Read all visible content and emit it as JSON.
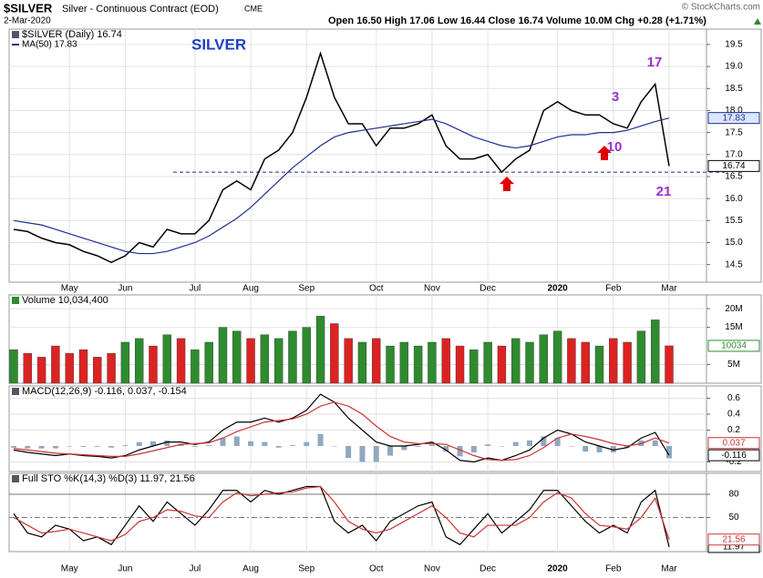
{
  "header": {
    "symbol": "$SILVER",
    "name": "Silver - Continuous Contract (EOD)",
    "exchange": "CME",
    "date": "2-Mar-2020",
    "quote": "Open 16.50  High 17.06  Low 16.44  Close 16.74  Volume 10.0M  Chg +0.28 (+1.71%)",
    "copyright": "© StockCharts.com"
  },
  "chart_data": [
    {
      "type": "line",
      "title": "$SILVER (Daily) 16.74",
      "subtitle": "MA(50) 17.83",
      "categories": [
        null,
        null,
        null,
        null,
        "May",
        null,
        null,
        null,
        "Jun",
        null,
        null,
        null,
        null,
        "Jul",
        null,
        null,
        null,
        "Aug",
        null,
        null,
        null,
        "Sep",
        null,
        null,
        null,
        null,
        "Oct",
        null,
        null,
        null,
        "Nov",
        null,
        null,
        null,
        "Dec",
        null,
        null,
        null,
        null,
        "2020",
        null,
        null,
        null,
        "Feb",
        null,
        null,
        null,
        "Mar"
      ],
      "series": [
        {
          "color": "#000000",
          "show_last": true,
          "values": [
            15.3,
            15.25,
            15.1,
            15.0,
            14.95,
            14.8,
            14.7,
            14.55,
            14.7,
            15.0,
            14.9,
            15.3,
            15.2,
            15.2,
            15.5,
            16.2,
            16.4,
            16.2,
            16.9,
            17.1,
            17.5,
            18.3,
            19.3,
            18.3,
            17.7,
            17.7,
            17.2,
            17.6,
            17.6,
            17.7,
            17.9,
            17.2,
            16.9,
            16.9,
            17.0,
            16.6,
            16.9,
            17.1,
            18.0,
            18.2,
            18.0,
            17.9,
            17.9,
            17.7,
            17.6,
            18.2,
            18.6,
            16.74
          ]
        },
        {
          "color": "#1f2f8f",
          "show_last": true,
          "values": [
            15.5,
            15.45,
            15.4,
            15.3,
            15.2,
            15.1,
            15.0,
            14.9,
            14.8,
            14.75,
            14.75,
            14.8,
            14.9,
            15.0,
            15.15,
            15.35,
            15.55,
            15.8,
            16.1,
            16.4,
            16.7,
            16.95,
            17.2,
            17.4,
            17.5,
            17.55,
            17.6,
            17.65,
            17.7,
            17.75,
            17.8,
            17.7,
            17.55,
            17.4,
            17.3,
            17.2,
            17.15,
            17.2,
            17.3,
            17.4,
            17.45,
            17.45,
            17.5,
            17.5,
            17.55,
            17.65,
            17.75,
            17.83
          ]
        }
      ],
      "ylim": [
        14.1,
        19.85
      ],
      "yticks": [
        14.5,
        {
          "value": 15,
          "label": "15.0"
        },
        15.5,
        {
          "value": 16,
          "label": "16.0"
        },
        16.5,
        {
          "value": 17,
          "label": "17.0"
        },
        17.5,
        {
          "value": 18,
          "label": "18.0"
        },
        18.5,
        {
          "value": 19,
          "label": "19.0"
        },
        19.5
      ],
      "reference_line": 16.6,
      "annotations": [
        "SILVER",
        "17",
        "3",
        "10",
        "21"
      ]
    },
    {
      "type": "bar",
      "title": "Volume 10,034,400",
      "up_color": "#2e8b2e",
      "down_color": "#dd2222",
      "series": [
        {
          "color": "#2e8b2e",
          "last_label": "10034",
          "values": [
            9,
            8,
            7,
            10,
            8,
            9,
            7,
            8,
            11,
            12,
            10,
            13,
            12,
            9,
            11,
            15,
            14,
            12,
            13,
            12,
            14,
            15,
            18,
            16,
            12,
            11,
            12,
            10,
            11,
            10,
            11,
            12,
            10,
            9,
            11,
            10,
            12,
            11,
            13,
            14,
            12,
            11,
            10,
            12,
            11,
            14,
            17,
            10.0344
          ]
        }
      ],
      "ylim": [
        0,
        23.7
      ],
      "yticks": [
        {
          "value": 5,
          "label": "5M"
        },
        {
          "value": 15,
          "label": "15M"
        },
        {
          "value": 20,
          "label": "20M"
        }
      ]
    },
    {
      "type": "line",
      "title": "MACD(12,26,9) -0.116, 0.037, -0.154",
      "series": [
        {
          "kind": "bar",
          "color": "#8fa8c0",
          "values": [
            -0.02,
            -0.03,
            -0.03,
            -0.03,
            0,
            -0.01,
            -0.01,
            -0.02,
            0.01,
            0.05,
            0.06,
            0.07,
            0.03,
            -0.01,
            0.01,
            0.1,
            0.12,
            0.06,
            0.05,
            -0.02,
            0.01,
            0.05,
            0.15,
            0,
            -0.15,
            -0.2,
            -0.2,
            -0.12,
            -0.05,
            -0.01,
            0.02,
            -0.07,
            -0.13,
            -0.08,
            0.02,
            0,
            0.05,
            0.07,
            0.12,
            0.1,
            0,
            -0.07,
            -0.08,
            -0.08,
            -0.02,
            0.07,
            0.07,
            -0.154
          ]
        },
        {
          "color": "#000000",
          "show_last": true,
          "values": [
            -0.05,
            -0.08,
            -0.1,
            -0.12,
            -0.1,
            -0.12,
            -0.13,
            -0.15,
            -0.12,
            -0.05,
            0.0,
            0.05,
            0.05,
            0.02,
            0.05,
            0.2,
            0.3,
            0.3,
            0.35,
            0.3,
            0.35,
            0.45,
            0.65,
            0.55,
            0.35,
            0.2,
            0.05,
            0.0,
            0.0,
            0.02,
            0.05,
            -0.05,
            -0.18,
            -0.2,
            -0.15,
            -0.18,
            -0.12,
            -0.05,
            0.1,
            0.2,
            0.15,
            0.05,
            0.0,
            -0.05,
            -0.02,
            0.1,
            0.17,
            -0.116
          ]
        },
        {
          "color": "#cc3333",
          "show_last": true,
          "values": [
            -0.03,
            -0.05,
            -0.07,
            -0.09,
            -0.1,
            -0.11,
            -0.12,
            -0.13,
            -0.13,
            -0.1,
            -0.06,
            -0.02,
            0.02,
            0.03,
            0.04,
            0.1,
            0.18,
            0.24,
            0.3,
            0.32,
            0.34,
            0.4,
            0.5,
            0.55,
            0.5,
            0.4,
            0.25,
            0.12,
            0.05,
            0.03,
            0.03,
            0.02,
            -0.05,
            -0.12,
            -0.17,
            -0.18,
            -0.17,
            -0.12,
            -0.02,
            0.1,
            0.15,
            0.12,
            0.08,
            0.03,
            0.0,
            0.03,
            0.1,
            0.037
          ]
        }
      ],
      "ylim": [
        -0.32,
        0.754
      ],
      "yticks": [
        -0.2,
        0.2,
        0.4,
        0.6
      ]
    },
    {
      "type": "line",
      "title": "Full STO %K(14,3) %D(3) 11.97, 21.56",
      "categories": [
        null,
        null,
        null,
        null,
        "May",
        null,
        null,
        null,
        "Jun",
        null,
        null,
        null,
        null,
        "Jul",
        null,
        null,
        null,
        "Aug",
        null,
        null,
        null,
        "Sep",
        null,
        null,
        null,
        null,
        "Oct",
        null,
        null,
        null,
        "Nov",
        null,
        null,
        null,
        "Dec",
        null,
        null,
        null,
        null,
        "2020",
        null,
        null,
        null,
        "Feb",
        null,
        null,
        null,
        "Mar"
      ],
      "series": [
        {
          "color": "#000000",
          "show_last": true,
          "values": [
            55,
            30,
            25,
            40,
            35,
            20,
            25,
            15,
            40,
            65,
            45,
            70,
            55,
            40,
            60,
            85,
            85,
            70,
            85,
            80,
            85,
            90,
            90,
            45,
            30,
            40,
            20,
            45,
            55,
            65,
            70,
            25,
            15,
            35,
            55,
            30,
            45,
            60,
            85,
            85,
            65,
            45,
            30,
            40,
            30,
            70,
            85,
            11.97
          ]
        },
        {
          "color": "#cc3333",
          "show_last": true,
          "values": [
            50,
            40,
            30,
            32,
            35,
            30,
            25,
            20,
            28,
            45,
            50,
            60,
            58,
            52,
            50,
            70,
            82,
            78,
            80,
            82,
            83,
            88,
            90,
            70,
            45,
            35,
            30,
            35,
            45,
            55,
            65,
            50,
            30,
            25,
            40,
            40,
            40,
            50,
            70,
            82,
            75,
            55,
            40,
            38,
            35,
            50,
            75,
            21.56
          ]
        }
      ],
      "ylim": [
        6,
        107
      ],
      "yticks": [
        50,
        80
      ]
    }
  ]
}
